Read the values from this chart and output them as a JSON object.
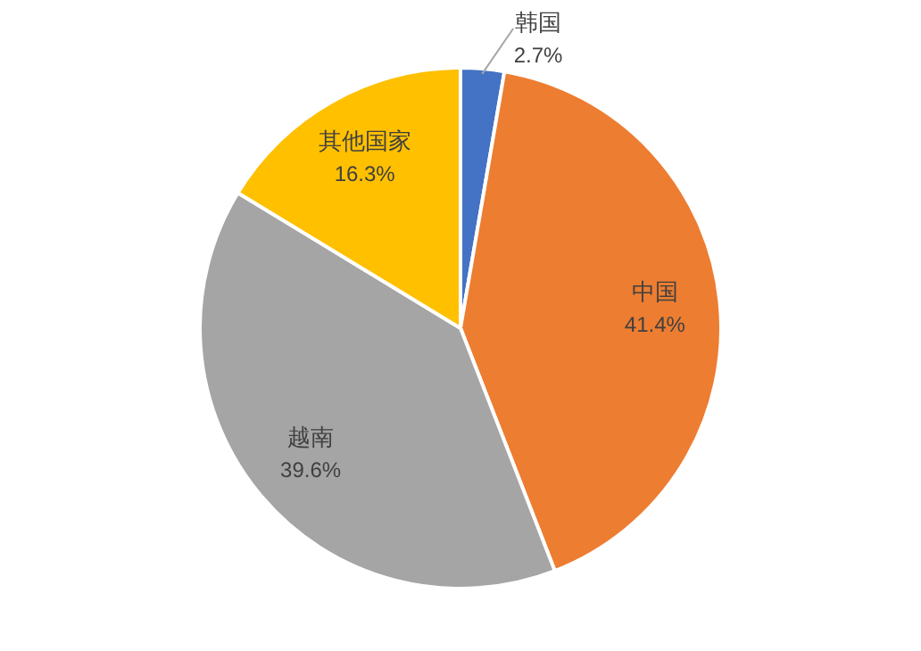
{
  "chart_data": {
    "type": "pie",
    "categories": [
      "韩国",
      "中国",
      "越南",
      "其他国家"
    ],
    "values": [
      2.7,
      41.4,
      39.6,
      16.3
    ],
    "colors": [
      "#4472c4",
      "#ed7d31",
      "#a5a5a5",
      "#ffc000"
    ],
    "value_labels": [
      "2.7%",
      "41.4%",
      "39.6%",
      "16.3%"
    ]
  }
}
